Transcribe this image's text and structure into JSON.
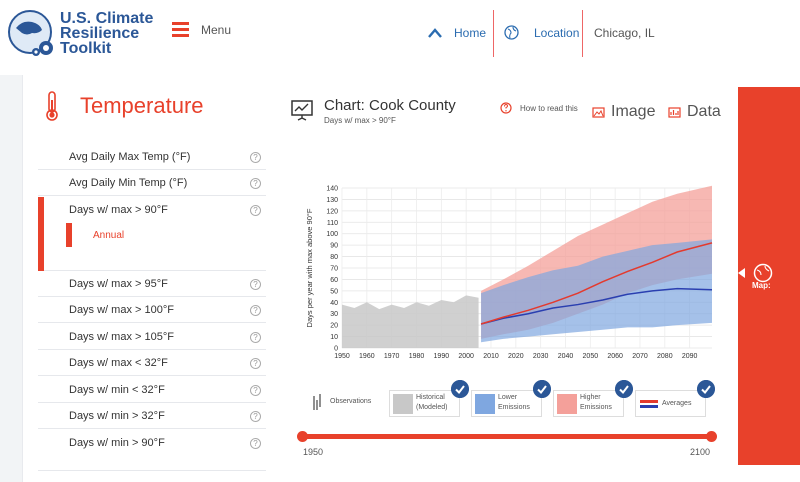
{
  "header": {
    "brand_line1": "U.S. Climate",
    "brand_line2": "Resilience",
    "brand_line3": "Toolkit",
    "menu_label": "Menu",
    "nav_home": "Home",
    "nav_location": "Location",
    "nav_city": "Chicago, IL"
  },
  "sidebar": {
    "title": "Temperature",
    "items": [
      {
        "label": "Avg Daily Max Temp (°F)"
      },
      {
        "label": "Avg Daily Min Temp (°F)"
      },
      {
        "label": "Days w/ max > 90°F"
      },
      {
        "label": "Days w/ max > 95°F"
      },
      {
        "label": "Days w/ max > 100°F"
      },
      {
        "label": "Days w/ max > 105°F"
      },
      {
        "label": "Days w/ max < 32°F"
      },
      {
        "label": "Days w/ min < 32°F"
      },
      {
        "label": "Days w/ min > 32°F"
      },
      {
        "label": "Days w/ min > 90°F"
      }
    ],
    "active_sub_label": "Annual",
    "help_glyph": "?"
  },
  "chart_header": {
    "title": "Chart: Cook County",
    "subtitle": "Days w/ max > 90°F",
    "how_to_read": "How to read this",
    "image_label": "Image",
    "data_label": "Data"
  },
  "map_panel": {
    "label": "Map:"
  },
  "legend": {
    "observations": "Observations",
    "historical_line1": "Historical",
    "historical_line2": "(Modeled)",
    "lower_line1": "Lower",
    "lower_line2": "Emissions",
    "higher_line1": "Higher",
    "higher_line2": "Emissions",
    "averages": "Averages"
  },
  "slider": {
    "start_label": "1950",
    "end_label": "2100",
    "start": 1950,
    "end": 2100
  },
  "colors": {
    "accent_red": "#e8412b",
    "brand_blue": "#2b5797",
    "historical_gray": "#c8c8c8",
    "lower_blue": "#7fa7e0",
    "higher_red": "#f4a09a",
    "lower_line": "#2a3fb0",
    "higher_line": "#e33a2e"
  },
  "chart_data": {
    "type": "area",
    "ylabel": "Days per year with max above 90°F",
    "xlabel": "",
    "xlim": [
      1950,
      2099
    ],
    "ylim": [
      0,
      140
    ],
    "x_ticks": [
      1950,
      1960,
      1970,
      1980,
      1990,
      2000,
      2010,
      2020,
      2030,
      2040,
      2050,
      2060,
      2070,
      2080,
      2090
    ],
    "y_ticks": [
      0,
      10,
      20,
      30,
      40,
      50,
      60,
      70,
      80,
      90,
      100,
      110,
      120,
      130,
      140
    ],
    "grid": true,
    "historical_band": {
      "x": [
        1950,
        1955,
        1960,
        1965,
        1970,
        1975,
        1980,
        1985,
        1990,
        1995,
        2000,
        2005
      ],
      "low": [
        0,
        0,
        0,
        0,
        0,
        0,
        0,
        0,
        0,
        0,
        0,
        0
      ],
      "high": [
        38,
        35,
        40,
        34,
        38,
        35,
        40,
        37,
        42,
        40,
        46,
        44
      ]
    },
    "lower_emissions_band": {
      "x": [
        2006,
        2015,
        2025,
        2035,
        2045,
        2055,
        2065,
        2075,
        2085,
        2099
      ],
      "low": [
        5,
        8,
        10,
        12,
        14,
        16,
        18,
        18,
        20,
        22
      ],
      "high": [
        48,
        55,
        62,
        68,
        72,
        80,
        85,
        90,
        92,
        95
      ]
    },
    "higher_emissions_band": {
      "x": [
        2006,
        2015,
        2025,
        2035,
        2045,
        2055,
        2065,
        2075,
        2085,
        2099
      ],
      "low": [
        8,
        12,
        16,
        22,
        30,
        38,
        48,
        55,
        60,
        65
      ],
      "high": [
        50,
        60,
        72,
        85,
        98,
        108,
        118,
        128,
        135,
        142
      ]
    },
    "series": [
      {
        "name": "Lower Emissions",
        "x": [
          2006,
          2015,
          2025,
          2035,
          2045,
          2055,
          2065,
          2075,
          2085,
          2099
        ],
        "values": [
          21,
          26,
          30,
          35,
          38,
          42,
          47,
          50,
          52,
          51
        ]
      },
      {
        "name": "Higher Emissions",
        "x": [
          2006,
          2015,
          2025,
          2035,
          2045,
          2055,
          2065,
          2075,
          2085,
          2099
        ],
        "values": [
          21,
          27,
          33,
          40,
          48,
          58,
          67,
          75,
          84,
          92
        ]
      }
    ]
  }
}
